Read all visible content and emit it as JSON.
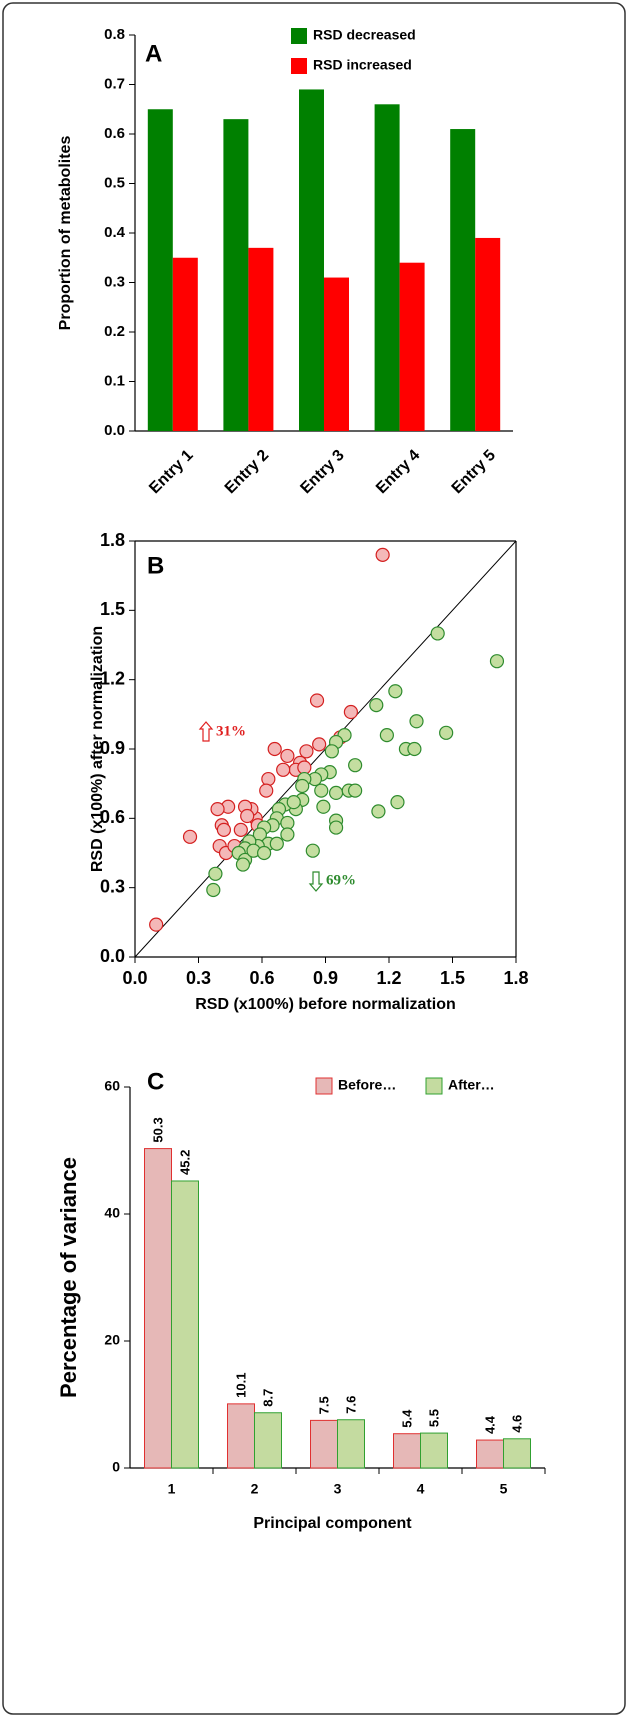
{
  "chart_data": [
    {
      "type": "bar",
      "title": "A",
      "y_label": "Proportion of metabolites",
      "categories": [
        "Entry 1",
        "Entry 2",
        "Entry 3",
        "Entry 4",
        "Entry 5"
      ],
      "series": [
        {
          "name": "RSD decreased",
          "color": "#008000",
          "values": [
            0.65,
            0.63,
            0.69,
            0.66,
            0.61
          ]
        },
        {
          "name": "RSD increased",
          "color": "#ff0000",
          "values": [
            0.35,
            0.37,
            0.31,
            0.34,
            0.39
          ]
        }
      ],
      "ylim": [
        0,
        0.8
      ],
      "yticks": [
        {
          "value": 0,
          "label": "0.0"
        },
        0.1,
        0.2,
        0.3,
        0.4,
        0.5,
        0.6,
        0.7,
        0.8
      ]
    },
    {
      "type": "scatter",
      "title": "B",
      "x_label": "RSD (x100%) before normalization",
      "y_label": "RSD (x100%) after normalization",
      "annotations": [
        "31%",
        "69%"
      ],
      "series": [
        {
          "color": "#f4b8b8",
          "edgecolor": "#d42020",
          "x": [
            1.17,
            0.86,
            1.02,
            0.97,
            0.87,
            0.81,
            0.78,
            0.76,
            0.72,
            0.66,
            0.7,
            0.63,
            0.62,
            0.57,
            0.55,
            0.52,
            0.58,
            0.53,
            0.44,
            0.39,
            0.41,
            0.42,
            0.4,
            0.43,
            0.47,
            0.26,
            0.1,
            0.5,
            0.8
          ],
          "values": [
            1.74,
            1.11,
            1.06,
            0.95,
            0.92,
            0.89,
            0.84,
            0.81,
            0.87,
            0.9,
            0.81,
            0.77,
            0.72,
            0.6,
            0.64,
            0.65,
            0.57,
            0.61,
            0.65,
            0.64,
            0.57,
            0.55,
            0.48,
            0.45,
            0.48,
            0.52,
            0.14,
            0.55,
            0.82
          ]
        },
        {
          "color": "#c4dea0",
          "edgecolor": "#2e8b2e",
          "x": [
            1.43,
            1.71,
            1.23,
            1.14,
            1.33,
            1.19,
            1.47,
            1.28,
            1.32,
            0.99,
            0.95,
            0.93,
            1.04,
            0.92,
            0.88,
            0.85,
            0.8,
            0.88,
            0.95,
            1.01,
            1.04,
            1.15,
            1.24,
            0.89,
            0.95,
            0.95,
            0.84,
            0.79,
            0.76,
            0.71,
            0.68,
            0.67,
            0.72,
            0.72,
            0.65,
            0.61,
            0.59,
            0.63,
            0.67,
            0.58,
            0.54,
            0.52,
            0.49,
            0.52,
            0.51,
            0.56,
            0.61,
            0.38,
            0.37,
            0.75,
            0.79
          ],
          "values": [
            1.4,
            1.28,
            1.15,
            1.09,
            1.02,
            0.96,
            0.97,
            0.9,
            0.9,
            0.96,
            0.93,
            0.89,
            0.83,
            0.8,
            0.79,
            0.77,
            0.77,
            0.72,
            0.71,
            0.72,
            0.72,
            0.63,
            0.67,
            0.65,
            0.59,
            0.56,
            0.46,
            0.68,
            0.64,
            0.66,
            0.64,
            0.6,
            0.58,
            0.53,
            0.57,
            0.56,
            0.53,
            0.49,
            0.49,
            0.48,
            0.5,
            0.47,
            0.45,
            0.42,
            0.4,
            0.46,
            0.45,
            0.36,
            0.29,
            0.67,
            0.74
          ]
        }
      ],
      "xlim": [
        0,
        1.8
      ],
      "ylim": [
        0,
        1.8
      ],
      "xticks": [
        {
          "value": 0,
          "label": "0.0"
        },
        0.3,
        0.6,
        0.9,
        1.2,
        1.5,
        1.8
      ],
      "yticks": [
        {
          "value": 0,
          "label": "0.0"
        },
        0.3,
        0.6,
        0.9,
        1.2,
        1.5,
        1.8
      ]
    },
    {
      "type": "bar",
      "title": "C",
      "x_label": "Principal component",
      "y_label": "Percentage of variance",
      "categories": [
        "1",
        "2",
        "3",
        "4",
        "5"
      ],
      "data_labels": true,
      "series": [
        {
          "name": "Before…",
          "color": "#e6b8b7",
          "edgecolor": "#e03030",
          "values": [
            50.3,
            10.1,
            7.5,
            5.4,
            4.4
          ]
        },
        {
          "name": "After…",
          "color": "#c4dba0",
          "edgecolor": "#30a030",
          "values": [
            45.2,
            8.7,
            7.6,
            5.5,
            4.6
          ]
        }
      ],
      "ylim": [
        0,
        60
      ],
      "yticks": [
        0,
        20,
        40,
        60
      ]
    }
  ]
}
